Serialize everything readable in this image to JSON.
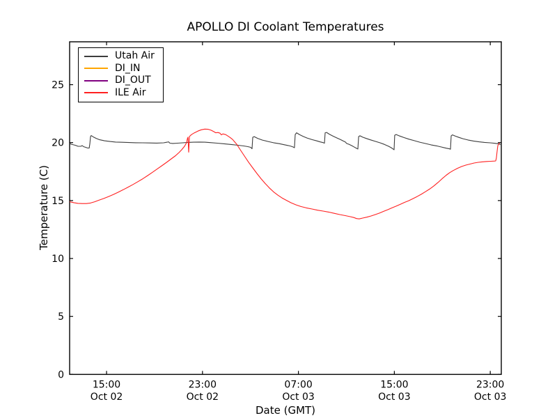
{
  "figure": {
    "background": "#ffffff"
  },
  "chart_data": {
    "type": "line",
    "title": "APOLLO DI Coolant Temperatures",
    "xlabel": "Date (GMT)",
    "ylabel": "Temperature (C)",
    "x_unit": "hours since Oct 02 15:00 GMT",
    "xlim": [
      -3.08,
      32.92
    ],
    "ylim": [
      0,
      28.7
    ],
    "grid": false,
    "legend_position": "upper left",
    "axis_color": "#000000",
    "yticks": [
      0,
      5,
      10,
      15,
      20,
      25
    ],
    "xticks": [
      {
        "hours": 0,
        "line1": "15:00",
        "line2": "Oct 02"
      },
      {
        "hours": 8,
        "line1": "23:00",
        "line2": "Oct 02"
      },
      {
        "hours": 16,
        "line1": "07:00",
        "line2": "Oct 03"
      },
      {
        "hours": 24,
        "line1": "15:00",
        "line2": "Oct 03"
      },
      {
        "hours": 32,
        "line1": "23:00",
        "line2": "Oct 03"
      }
    ],
    "series": [
      {
        "name": "Utah Air",
        "color": "#3c3c3c",
        "points": [
          [
            -3.08,
            19.95
          ],
          [
            -2.96,
            19.86
          ],
          [
            -2.61,
            19.77
          ],
          [
            -2.38,
            19.68
          ],
          [
            -2.15,
            19.68
          ],
          [
            -2.03,
            19.74
          ],
          [
            -1.92,
            19.65
          ],
          [
            -1.74,
            19.59
          ],
          [
            -1.57,
            19.53
          ],
          [
            -1.45,
            19.53
          ],
          [
            -1.39,
            19.92
          ],
          [
            -1.34,
            20.52
          ],
          [
            -1.28,
            20.61
          ],
          [
            -1.1,
            20.49
          ],
          [
            -0.87,
            20.37
          ],
          [
            -0.58,
            20.25
          ],
          [
            -0.17,
            20.16
          ],
          [
            0.29,
            20.1
          ],
          [
            0.75,
            20.05
          ],
          [
            1.28,
            20.03
          ],
          [
            1.86,
            20.01
          ],
          [
            2.44,
            19.99
          ],
          [
            3.02,
            19.98
          ],
          [
            3.6,
            19.97
          ],
          [
            4.18,
            19.96
          ],
          [
            4.76,
            19.98
          ],
          [
            5.05,
            20.04
          ],
          [
            5.17,
            20.07
          ],
          [
            5.28,
            19.95
          ],
          [
            5.52,
            19.93
          ],
          [
            5.92,
            19.95
          ],
          [
            6.33,
            19.98
          ],
          [
            6.79,
            20.02
          ],
          [
            7.26,
            20.04
          ],
          [
            7.72,
            20.05
          ],
          [
            8.19,
            20.04
          ],
          [
            8.65,
            20.0
          ],
          [
            9.23,
            19.95
          ],
          [
            9.81,
            19.9
          ],
          [
            10.39,
            19.84
          ],
          [
            10.97,
            19.77
          ],
          [
            11.44,
            19.71
          ],
          [
            11.79,
            19.65
          ],
          [
            12.02,
            19.59
          ],
          [
            12.13,
            19.47
          ],
          [
            12.19,
            20.46
          ],
          [
            12.31,
            20.52
          ],
          [
            12.6,
            20.37
          ],
          [
            13.0,
            20.22
          ],
          [
            13.47,
            20.1
          ],
          [
            13.93,
            19.99
          ],
          [
            14.4,
            19.91
          ],
          [
            14.8,
            19.82
          ],
          [
            15.15,
            19.75
          ],
          [
            15.38,
            19.69
          ],
          [
            15.56,
            19.62
          ],
          [
            15.67,
            19.56
          ],
          [
            15.73,
            20.7
          ],
          [
            15.85,
            20.85
          ],
          [
            16.08,
            20.7
          ],
          [
            16.37,
            20.55
          ],
          [
            16.72,
            20.4
          ],
          [
            17.13,
            20.26
          ],
          [
            17.53,
            20.15
          ],
          [
            17.82,
            20.06
          ],
          [
            18.06,
            20.0
          ],
          [
            18.17,
            19.95
          ],
          [
            18.23,
            20.85
          ],
          [
            18.35,
            20.88
          ],
          [
            18.58,
            20.73
          ],
          [
            18.87,
            20.57
          ],
          [
            19.22,
            20.4
          ],
          [
            19.51,
            20.26
          ],
          [
            19.74,
            20.14
          ],
          [
            19.91,
            20.06
          ],
          [
            20.03,
            19.92
          ],
          [
            20.2,
            19.86
          ],
          [
            20.44,
            19.74
          ],
          [
            20.67,
            19.61
          ],
          [
            20.84,
            19.51
          ],
          [
            20.96,
            19.45
          ],
          [
            21.02,
            20.52
          ],
          [
            21.13,
            20.59
          ],
          [
            21.36,
            20.47
          ],
          [
            21.65,
            20.36
          ],
          [
            22.0,
            20.24
          ],
          [
            22.41,
            20.11
          ],
          [
            22.81,
            19.98
          ],
          [
            23.16,
            19.85
          ],
          [
            23.51,
            19.69
          ],
          [
            23.74,
            19.56
          ],
          [
            23.92,
            19.43
          ],
          [
            23.98,
            19.38
          ],
          [
            24.03,
            20.64
          ],
          [
            24.15,
            20.7
          ],
          [
            24.44,
            20.57
          ],
          [
            24.79,
            20.44
          ],
          [
            25.2,
            20.3
          ],
          [
            25.66,
            20.17
          ],
          [
            26.12,
            20.04
          ],
          [
            26.59,
            19.92
          ],
          [
            27.05,
            19.81
          ],
          [
            27.52,
            19.72
          ],
          [
            27.92,
            19.62
          ],
          [
            28.33,
            19.52
          ],
          [
            28.62,
            19.46
          ],
          [
            28.68,
            19.43
          ],
          [
            28.74,
            20.58
          ],
          [
            28.85,
            20.67
          ],
          [
            29.09,
            20.56
          ],
          [
            29.38,
            20.45
          ],
          [
            29.72,
            20.34
          ],
          [
            30.13,
            20.23
          ],
          [
            30.6,
            20.14
          ],
          [
            31.06,
            20.07
          ],
          [
            31.52,
            20.02
          ],
          [
            31.99,
            19.98
          ],
          [
            32.39,
            19.94
          ],
          [
            32.68,
            19.9
          ],
          [
            32.86,
            19.83
          ]
        ]
      },
      {
        "name": "DI_IN",
        "color": "#ffa500",
        "points": []
      },
      {
        "name": "DI_OUT",
        "color": "#800080",
        "points": []
      },
      {
        "name": "ILE Air",
        "color": "#ff2020",
        "points": [
          [
            -3.08,
            14.9
          ],
          [
            -2.73,
            14.82
          ],
          [
            -2.38,
            14.76
          ],
          [
            -2.03,
            14.74
          ],
          [
            -1.68,
            14.74
          ],
          [
            -1.34,
            14.79
          ],
          [
            -0.99,
            14.9
          ],
          [
            -0.64,
            15.03
          ],
          [
            -0.23,
            15.18
          ],
          [
            0.17,
            15.35
          ],
          [
            0.58,
            15.53
          ],
          [
            0.99,
            15.73
          ],
          [
            1.39,
            15.94
          ],
          [
            1.8,
            16.16
          ],
          [
            2.21,
            16.39
          ],
          [
            2.61,
            16.63
          ],
          [
            3.02,
            16.88
          ],
          [
            3.43,
            17.16
          ],
          [
            3.83,
            17.44
          ],
          [
            4.24,
            17.74
          ],
          [
            4.64,
            18.03
          ],
          [
            5.05,
            18.33
          ],
          [
            5.4,
            18.6
          ],
          [
            5.75,
            18.87
          ],
          [
            6.04,
            19.14
          ],
          [
            6.27,
            19.39
          ],
          [
            6.5,
            19.68
          ],
          [
            6.68,
            20.01
          ],
          [
            6.73,
            20.31
          ],
          [
            6.79,
            20.47
          ],
          [
            6.85,
            19.17
          ],
          [
            6.91,
            20.53
          ],
          [
            7.08,
            20.69
          ],
          [
            7.32,
            20.84
          ],
          [
            7.61,
            20.99
          ],
          [
            7.9,
            21.11
          ],
          [
            8.19,
            21.17
          ],
          [
            8.48,
            21.15
          ],
          [
            8.71,
            21.07
          ],
          [
            8.94,
            20.95
          ],
          [
            9.11,
            20.85
          ],
          [
            9.29,
            20.87
          ],
          [
            9.46,
            20.81
          ],
          [
            9.58,
            20.67
          ],
          [
            9.7,
            20.75
          ],
          [
            9.93,
            20.69
          ],
          [
            10.16,
            20.54
          ],
          [
            10.33,
            20.42
          ],
          [
            10.51,
            20.27
          ],
          [
            10.68,
            20.07
          ],
          [
            10.86,
            19.85
          ],
          [
            11.15,
            19.38
          ],
          [
            11.5,
            18.84
          ],
          [
            11.84,
            18.31
          ],
          [
            12.19,
            17.82
          ],
          [
            12.54,
            17.34
          ],
          [
            12.89,
            16.88
          ],
          [
            13.24,
            16.46
          ],
          [
            13.58,
            16.09
          ],
          [
            13.93,
            15.75
          ],
          [
            14.28,
            15.47
          ],
          [
            14.63,
            15.23
          ],
          [
            14.98,
            15.03
          ],
          [
            15.38,
            14.81
          ],
          [
            15.79,
            14.63
          ],
          [
            16.2,
            14.49
          ],
          [
            16.66,
            14.37
          ],
          [
            17.13,
            14.27
          ],
          [
            17.59,
            14.17
          ],
          [
            18.06,
            14.09
          ],
          [
            18.52,
            14.01
          ],
          [
            18.98,
            13.9
          ],
          [
            19.45,
            13.79
          ],
          [
            19.91,
            13.7
          ],
          [
            20.32,
            13.61
          ],
          [
            20.61,
            13.54
          ],
          [
            20.84,
            13.45
          ],
          [
            21.07,
            13.42
          ],
          [
            21.36,
            13.49
          ],
          [
            21.71,
            13.57
          ],
          [
            22.06,
            13.67
          ],
          [
            22.41,
            13.79
          ],
          [
            22.76,
            13.92
          ],
          [
            23.1,
            14.07
          ],
          [
            23.45,
            14.21
          ],
          [
            23.8,
            14.37
          ],
          [
            24.15,
            14.52
          ],
          [
            24.5,
            14.68
          ],
          [
            24.85,
            14.84
          ],
          [
            25.2,
            14.99
          ],
          [
            25.54,
            15.16
          ],
          [
            25.89,
            15.34
          ],
          [
            26.24,
            15.54
          ],
          [
            26.59,
            15.76
          ],
          [
            26.94,
            15.99
          ],
          [
            27.28,
            16.25
          ],
          [
            27.63,
            16.55
          ],
          [
            27.98,
            16.88
          ],
          [
            28.33,
            17.19
          ],
          [
            28.62,
            17.41
          ],
          [
            28.91,
            17.59
          ],
          [
            29.26,
            17.78
          ],
          [
            29.61,
            17.94
          ],
          [
            29.96,
            18.06
          ],
          [
            30.31,
            18.15
          ],
          [
            30.65,
            18.24
          ],
          [
            31.0,
            18.3
          ],
          [
            31.35,
            18.34
          ],
          [
            31.7,
            18.37
          ],
          [
            32.05,
            18.39
          ],
          [
            32.34,
            18.41
          ],
          [
            32.45,
            18.42
          ],
          [
            32.51,
            18.66
          ],
          [
            32.57,
            19.26
          ],
          [
            32.63,
            19.74
          ],
          [
            32.74,
            19.92
          ],
          [
            32.8,
            19.95
          ]
        ]
      }
    ]
  }
}
